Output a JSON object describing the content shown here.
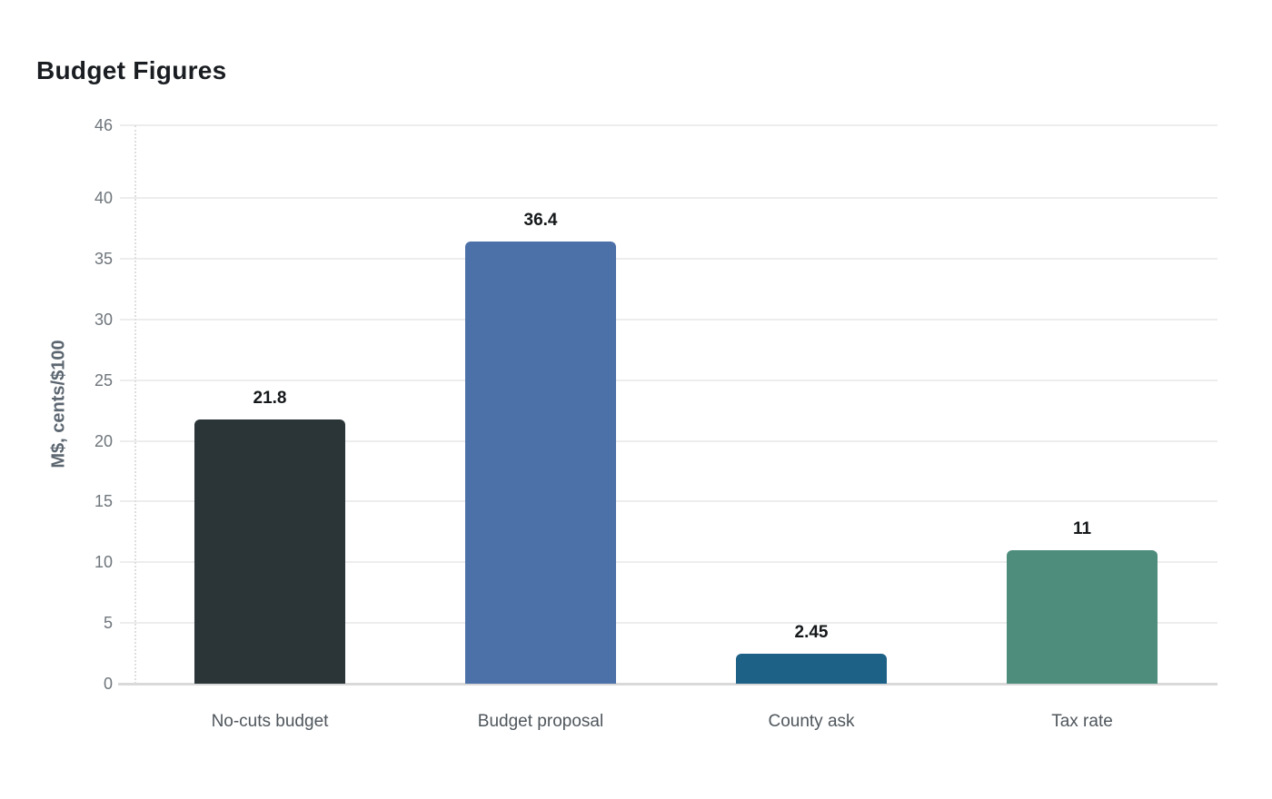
{
  "chart_data": {
    "type": "bar",
    "title": "Budget Figures",
    "ylabel": "M$, cents/$100",
    "xlabel": "",
    "categories": [
      "No-cuts budget",
      "Budget proposal",
      "County ask",
      "Tax rate"
    ],
    "values": [
      21.8,
      36.4,
      2.45,
      11
    ],
    "value_labels": [
      "21.8",
      "36.4",
      "2.45",
      "11"
    ],
    "bar_colors": [
      "#2b3538",
      "#4c70a8",
      "#1d6187",
      "#4e8d7c"
    ],
    "yticks": [
      0,
      5,
      10,
      15,
      20,
      25,
      30,
      35,
      40,
      46
    ],
    "ylim": [
      0,
      46
    ],
    "grid": true,
    "legend": "none",
    "colors": {
      "title_text": "#1a1d21",
      "axis_label_text": "#5c6670",
      "tick_text": "#6e757b",
      "category_text": "#4f565c",
      "value_label_text": "#15181a",
      "gridline": "#ededed",
      "baseline": "#d9d9d9",
      "background": "#ffffff"
    }
  }
}
